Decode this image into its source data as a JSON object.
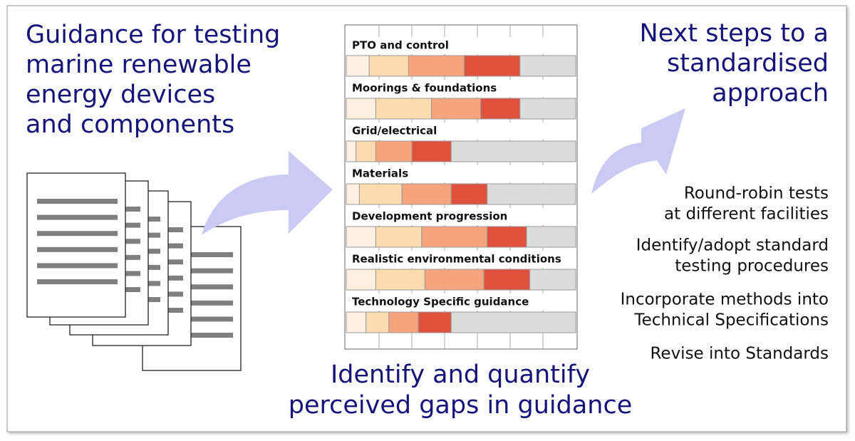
{
  "left_heading": [
    "Guidance for testing",
    "marine renewable",
    "energy devices",
    "and components"
  ],
  "right_heading": [
    "Next steps to a",
    "standardised",
    "approach"
  ],
  "next_steps": [
    [
      "Round-robin tests",
      "at different facilities"
    ],
    [
      "Identify/adopt standard",
      "testing procedures"
    ],
    [
      "Incorporate methods into",
      "Technical Specifications"
    ],
    [
      "Revise into Standards"
    ]
  ],
  "caption": [
    "Identify and quantify",
    "perceived gaps in guidance"
  ],
  "chart_data": {
    "type": "bar",
    "orientation": "horizontal",
    "stacked": true,
    "categories": [
      "PTO and control",
      "Moorings & foundations",
      "Grid/electrical",
      "Materials",
      "Development progression",
      "Realistic environmental conditions",
      "Technology Specific guidance"
    ],
    "series": [
      {
        "color": "#fdf0e2",
        "values": [
          0.7,
          0.9,
          0.3,
          0.4,
          0.9,
          0.9,
          0.6
        ]
      },
      {
        "color": "#fcdcaf",
        "values": [
          1.2,
          1.7,
          0.6,
          1.3,
          1.4,
          1.5,
          0.7
        ]
      },
      {
        "color": "#f5a47c",
        "values": [
          1.7,
          1.5,
          1.1,
          1.5,
          2.0,
          1.8,
          0.9
        ]
      },
      {
        "color": "#e0513c",
        "values": [
          1.7,
          1.2,
          1.2,
          1.1,
          1.2,
          1.4,
          1.0
        ]
      },
      {
        "color": "#dcdcdc",
        "values": [
          1.7,
          1.7,
          3.8,
          2.7,
          1.5,
          1.4,
          3.8
        ]
      }
    ],
    "xlim": [
      0,
      7
    ],
    "xticks": [
      1,
      2,
      3,
      4,
      5,
      6
    ],
    "grid": true
  }
}
